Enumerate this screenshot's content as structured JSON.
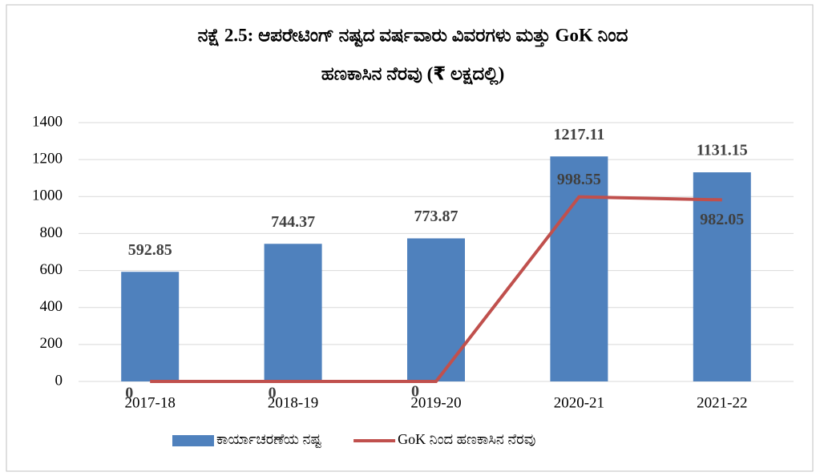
{
  "chart_data": {
    "type": "bar",
    "title": [
      "ನಕ್ಷೆ  2.5: ಆಪರೇಟಿಂಗ್ ನಷ್ಟದ ವರ್ಷವಾರು ವಿವರಗಳು ಮತ್ತು GoK ನಿಂದ",
      "ಹಣಕಾಸಿನ ನೆರವು (₹ ಲಕ್ಷದಲ್ಲಿ)"
    ],
    "categories": [
      "2017-18",
      "2018-19",
      "2019-20",
      "2020-21",
      "2021-22"
    ],
    "series": [
      {
        "name": "ಕಾರ್ಯಾಚರಣೆಯ ನಷ್ಟ",
        "type": "bar",
        "color": "#4f81bd",
        "values": [
          592.85,
          744.37,
          773.87,
          1217.11,
          1131.15
        ]
      },
      {
        "name": "GoK ನಿಂದ ಹಣಕಾಸಿನ ನೆರವು",
        "type": "line",
        "color": "#c0504d",
        "values": [
          0,
          0,
          0,
          998.55,
          982.05
        ]
      }
    ],
    "ylim": [
      0,
      1400
    ],
    "yticks": [
      0,
      200,
      400,
      600,
      800,
      1000,
      1200,
      1400
    ],
    "grid": true,
    "legend": "bottom"
  }
}
